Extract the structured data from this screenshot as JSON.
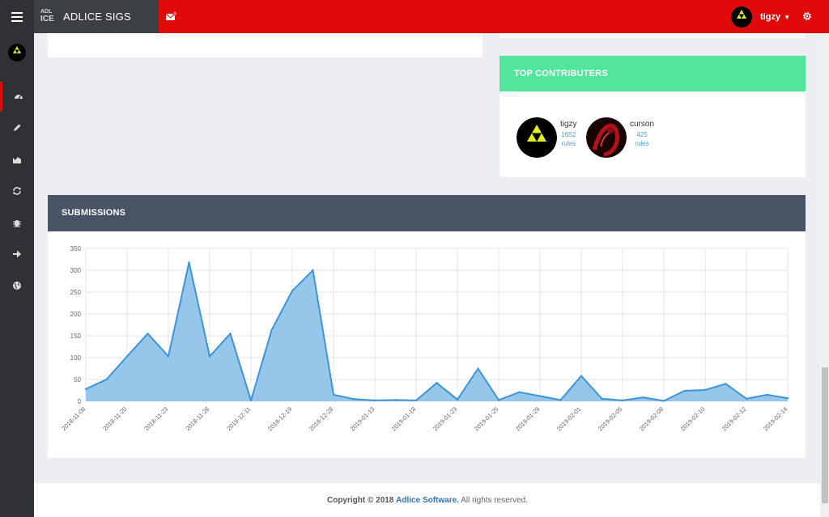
{
  "header": {
    "brand_logo_top": "ADL",
    "brand_logo_bottom": "ICE",
    "brand_name": "ADLICE SIGS",
    "user_name": "tigzy",
    "accent_color": "#e00a0a"
  },
  "sidebar": {
    "items": [
      {
        "icon": "dashboard-icon",
        "active": true
      },
      {
        "icon": "pencil-icon",
        "active": false
      },
      {
        "icon": "area-chart-icon",
        "active": false
      },
      {
        "icon": "refresh-icon",
        "active": false
      },
      {
        "icon": "bug-icon",
        "active": false
      },
      {
        "icon": "arrow-right-icon",
        "active": false
      },
      {
        "icon": "globe-icon",
        "active": false
      }
    ]
  },
  "top_contributors": {
    "title": "TOP CONTRIBUTERS",
    "header_color": "#52e59c",
    "users": [
      {
        "name": "tigzy",
        "count": "1652",
        "unit": "rules"
      },
      {
        "name": "curson",
        "count": "425",
        "unit": "rules"
      }
    ]
  },
  "submissions": {
    "title": "SUBMISSIONS",
    "header_color": "#495366"
  },
  "chart_data": {
    "type": "area",
    "title": "",
    "xlabel": "",
    "ylabel": "",
    "ylim": [
      0,
      350
    ],
    "yticks": [
      0,
      50,
      100,
      150,
      200,
      250,
      300,
      350
    ],
    "grid": true,
    "line_color": "#3d95d6",
    "fill_color": "#91c3ea",
    "x_tick_labels": [
      "2018-11-08",
      "2018-11-20",
      "2018-11-23",
      "2018-11-28",
      "2018-12-11",
      "2018-12-19",
      "2018-12-28",
      "2019-01-13",
      "2019-01-18",
      "2019-01-23",
      "2019-01-25",
      "2019-01-29",
      "2019-02-01",
      "2019-02-05",
      "2019-02-08",
      "2019-02-10",
      "2019-02-12",
      "2019-02-14"
    ],
    "values": [
      28,
      50,
      103,
      155,
      103,
      318,
      103,
      155,
      2,
      163,
      253,
      300,
      15,
      5,
      2,
      3,
      2,
      42,
      4,
      75,
      3,
      21,
      12,
      3,
      58,
      6,
      2,
      9,
      1,
      24,
      26,
      40,
      6,
      15,
      7
    ]
  },
  "footer": {
    "copyright": "Copyright © 2018",
    "company": "Adlice Software.",
    "rights": "All rights reserved."
  }
}
